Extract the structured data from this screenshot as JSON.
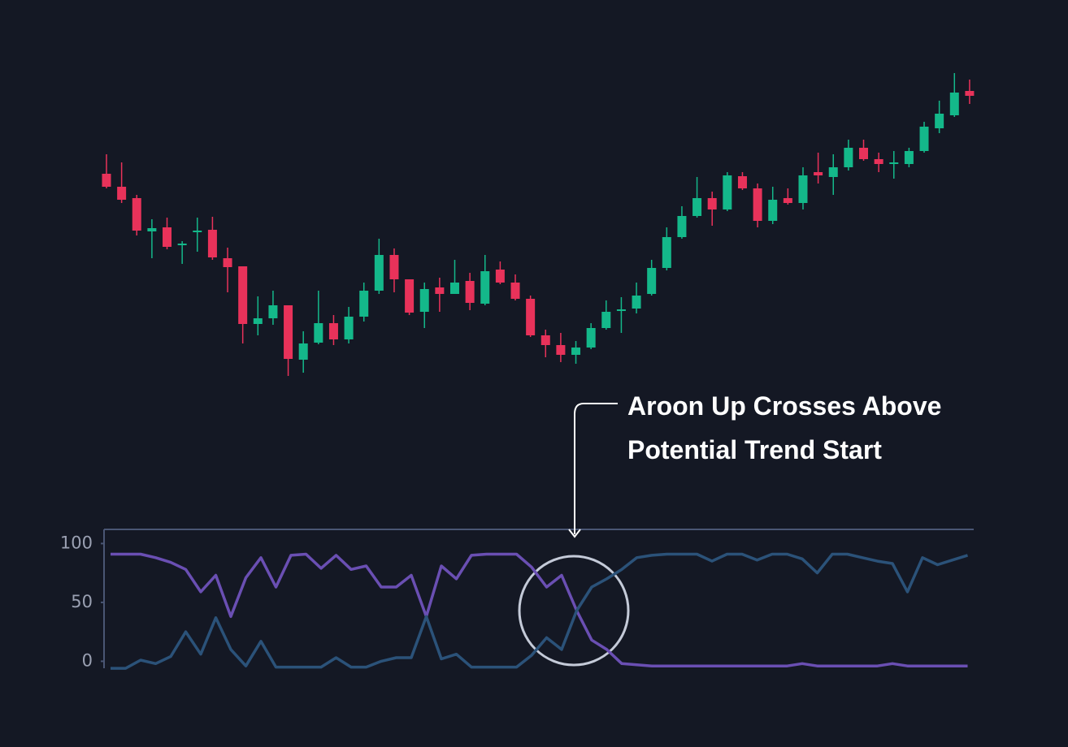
{
  "chart_data": [
    {
      "type": "candlestick",
      "ylim": [
        20,
        440
      ],
      "up_color": "#14b88a",
      "down_color": "#e8325a",
      "open": [
        286,
        270,
        256,
        215,
        220,
        198,
        215,
        217,
        182,
        172,
        101,
        108,
        124,
        57,
        78,
        102,
        82,
        110,
        142,
        186,
        156,
        116,
        146,
        138,
        154,
        126,
        168,
        152,
        132,
        87,
        75,
        63,
        72,
        96,
        117,
        120,
        138,
        170,
        208,
        234,
        256,
        242,
        283,
        268,
        228,
        256,
        250,
        288,
        282,
        294,
        318,
        304,
        299,
        298,
        314,
        342,
        358,
        388
      ],
      "high": [
        310,
        300,
        260,
        230,
        232,
        203,
        232,
        233,
        195,
        172,
        135,
        142,
        124,
        92,
        142,
        112,
        122,
        152,
        206,
        194,
        156,
        152,
        158,
        180,
        164,
        186,
        178,
        162,
        136,
        94,
        90,
        80,
        102,
        130,
        134,
        152,
        180,
        220,
        246,
        282,
        264,
        288,
        288,
        274,
        270,
        268,
        294,
        312,
        310,
        328,
        328,
        312,
        314,
        318,
        350,
        376,
        410,
        402
      ],
      "low": [
        268,
        250,
        210,
        182,
        193,
        175,
        190,
        180,
        140,
        77,
        87,
        100,
        37,
        41,
        76,
        75,
        77,
        104,
        138,
        140,
        112,
        96,
        116,
        138,
        118,
        124,
        150,
        130,
        85,
        60,
        54,
        52,
        70,
        94,
        90,
        114,
        136,
        167,
        206,
        232,
        222,
        240,
        266,
        220,
        224,
        248,
        242,
        274,
        260,
        290,
        302,
        288,
        280,
        294,
        312,
        336,
        356,
        372
      ],
      "close": [
        270,
        254,
        216,
        219,
        196,
        200,
        216,
        183,
        171,
        101,
        108,
        124,
        58,
        77,
        102,
        82,
        110,
        142,
        186,
        156,
        115,
        144,
        138,
        152,
        127,
        166,
        152,
        132,
        87,
        75,
        63,
        72,
        96,
        116,
        119,
        136,
        170,
        208,
        234,
        256,
        242,
        284,
        268,
        228,
        254,
        250,
        284,
        284,
        294,
        318,
        304,
        298,
        300,
        314,
        344,
        360,
        386,
        382
      ]
    },
    {
      "type": "line",
      "ylim": [
        -8,
        112
      ],
      "yticks": [
        0,
        50,
        100
      ],
      "series": [
        {
          "color": "#6a4fb3",
          "values": [
            91,
            91,
            91,
            88,
            84,
            78,
            59,
            73,
            38,
            71,
            88,
            63,
            90,
            91,
            79,
            90,
            78,
            81,
            63,
            63,
            73,
            38,
            81,
            70,
            90,
            91,
            91,
            91,
            80,
            63,
            73,
            43,
            18,
            10,
            -2,
            -3,
            -4,
            -4,
            -4,
            -4,
            -4,
            -4,
            -4,
            -4,
            -4,
            -4,
            -2,
            -4,
            -4,
            -4,
            -4,
            -4,
            -2,
            -4,
            -4,
            -4,
            -4,
            -4
          ]
        },
        {
          "color": "#2b5279",
          "values": [
            -6,
            -6,
            1,
            -2,
            4,
            25,
            6,
            37,
            10,
            -4,
            17,
            -5,
            -5,
            -5,
            -5,
            3,
            -5,
            -5,
            0,
            3,
            3,
            38,
            2,
            6,
            -5,
            -5,
            -5,
            -5,
            5,
            20,
            10,
            43,
            63,
            70,
            78,
            88,
            90,
            91,
            91,
            91,
            85,
            91,
            91,
            86,
            91,
            91,
            87,
            75,
            91,
            91,
            88,
            85,
            83,
            59,
            88,
            82,
            86,
            90
          ]
        }
      ],
      "annotations": [
        "Aroon Up Crosses Above",
        "Potential Trend Start"
      ]
    }
  ]
}
